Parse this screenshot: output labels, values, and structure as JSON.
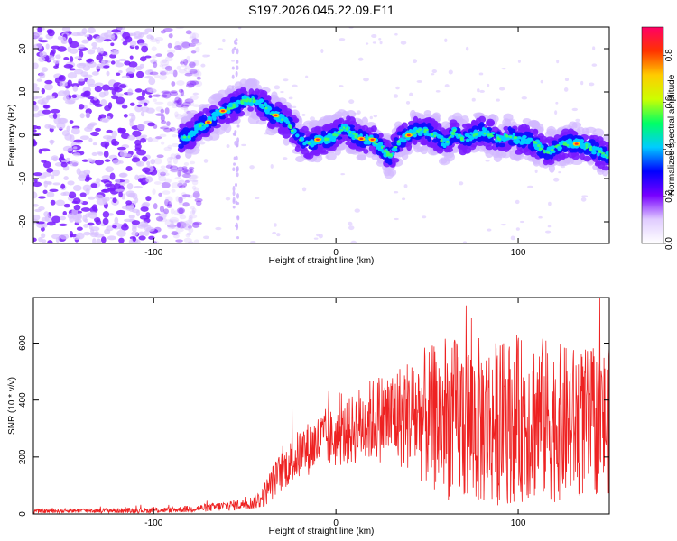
{
  "figure_title": "S197.2026.045.22.09.E11",
  "chart_data": [
    {
      "type": "heatmap",
      "title": "S197.2026.045.22.09.E11",
      "xlabel": "Height of straight line (km)",
      "ylabel": "Frequency (Hz)",
      "xlim": [
        -166,
        150
      ],
      "ylim": [
        -25,
        25
      ],
      "x_ticks": [
        -100,
        0,
        100
      ],
      "x_tick_labels": [
        "-100",
        "0",
        "100"
      ],
      "y_ticks": [
        -20,
        -10,
        0,
        10,
        20
      ],
      "y_tick_labels": [
        "-20",
        "-10",
        "0",
        "10",
        "20"
      ],
      "colorbar": {
        "label": "Normalized spectral amplitude",
        "range": [
          0,
          0.92
        ],
        "ticks": [
          0.0,
          0.2,
          0.4,
          0.6,
          0.8
        ],
        "tick_labels": [
          "0.0",
          "0.2",
          "0.4",
          "0.6",
          "0.8"
        ],
        "colormap": [
          "#ffffff",
          "#e0ccff",
          "#7700ff",
          "#0000ff",
          "#00ccff",
          "#00ff66",
          "#ccff00",
          "#ffcc00",
          "#ff3300",
          "#ff0066"
        ]
      },
      "noise_region_x": [
        -166,
        -85
      ],
      "secondary_stripe_x": -55,
      "ridge_frequency_track": {
        "x": [
          -85,
          -80,
          -75,
          -70,
          -65,
          -60,
          -55,
          -50,
          -45,
          -40,
          -35,
          -30,
          -25,
          -20,
          -15,
          -10,
          -5,
          0,
          5,
          10,
          15,
          20,
          25,
          30,
          35,
          40,
          45,
          50,
          55,
          60,
          65,
          70,
          75,
          80,
          85,
          90,
          95,
          100,
          105,
          110,
          115,
          120,
          125,
          130,
          135,
          140,
          145,
          150
        ],
        "frequency": [
          -1,
          0,
          2,
          3,
          5,
          6,
          7,
          8,
          8,
          7,
          5,
          4,
          2,
          -1,
          -2,
          -1,
          -1,
          0,
          2,
          0,
          -1,
          -1,
          -3,
          -5,
          -1,
          0,
          1,
          1,
          0,
          -2,
          1,
          -1,
          0,
          1,
          0,
          -1,
          0,
          -1,
          -1,
          -2,
          -4,
          -3,
          -2,
          -2,
          -2,
          -3,
          -4,
          -5
        ]
      },
      "ridge_peak_amplitude": 0.9
    },
    {
      "type": "line",
      "xlabel": "Height of straight line (km)",
      "ylabel": "SNR (10 * v/v)",
      "xlim": [
        -166,
        150
      ],
      "ylim": [
        0,
        760
      ],
      "x_ticks": [
        -100,
        0,
        100
      ],
      "x_tick_labels": [
        "-100",
        "0",
        "100"
      ],
      "y_ticks": [
        0,
        200,
        400,
        600
      ],
      "y_tick_labels": [
        "0",
        "200",
        "400",
        "600"
      ],
      "line_color": "#ee2222",
      "envelope": {
        "x": [
          -166,
          -140,
          -110,
          -90,
          -80,
          -70,
          -60,
          -50,
          -45,
          -40,
          -35,
          -30,
          -25,
          -20,
          -15,
          -10,
          -5,
          0,
          5,
          10,
          15,
          20,
          25,
          30,
          40,
          50,
          60,
          70,
          80,
          90,
          100,
          110,
          120,
          130,
          140,
          150
        ],
        "mean": [
          10,
          12,
          12,
          14,
          18,
          22,
          28,
          35,
          40,
          60,
          110,
          150,
          180,
          210,
          230,
          250,
          270,
          260,
          280,
          300,
          320,
          330,
          340,
          340,
          350,
          340,
          330,
          330,
          320,
          320,
          330,
          340,
          320,
          320,
          320,
          330
        ],
        "spread": [
          8,
          8,
          9,
          10,
          12,
          14,
          18,
          20,
          25,
          40,
          60,
          70,
          80,
          90,
          95,
          100,
          105,
          100,
          110,
          130,
          140,
          150,
          160,
          170,
          200,
          250,
          280,
          300,
          300,
          290,
          290,
          300,
          280,
          270,
          260,
          260
        ]
      }
    }
  ]
}
